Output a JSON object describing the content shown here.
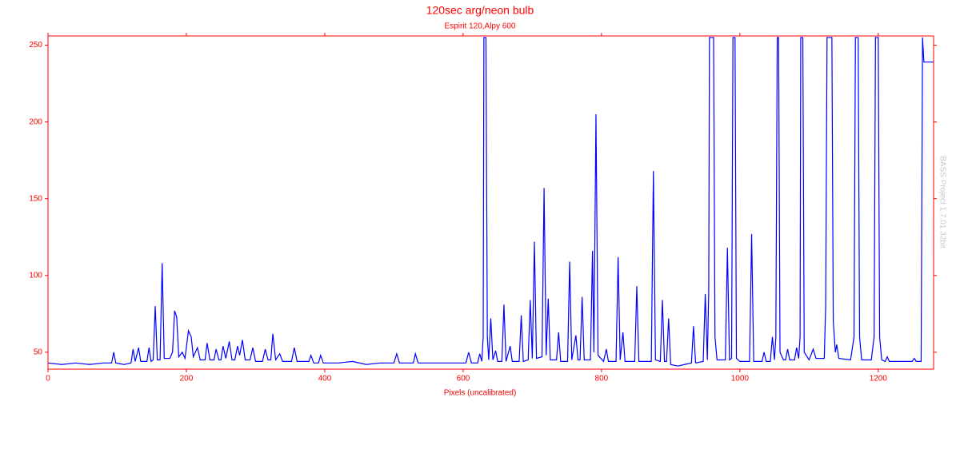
{
  "chart_data": {
    "type": "line",
    "title": "120sec arg/neon bulb",
    "subtitle": "Espirit 120,Alpy 600",
    "x_label": "Pixels (uncalibrated)",
    "watermark": "BASS Project 1.7.01 32bit",
    "axis_color": "#ff0000",
    "color": "#0000ff",
    "xlim": [
      0,
      1280
    ],
    "xticks": [
      0,
      200,
      400,
      600,
      800,
      1000,
      1200
    ],
    "ylim": [
      39,
      256
    ],
    "yticks": [
      50,
      100,
      150,
      200,
      250
    ],
    "grid": false,
    "x": [
      0,
      20,
      40,
      60,
      80,
      92,
      95,
      98,
      110,
      120,
      123,
      126,
      131,
      134,
      143,
      146,
      149,
      152,
      155,
      158,
      162,
      165,
      168,
      176,
      180,
      183,
      186,
      189,
      194,
      198,
      203,
      207,
      210,
      216,
      220,
      227,
      230,
      234,
      240,
      243,
      247,
      250,
      253,
      257,
      262,
      266,
      270,
      274,
      277,
      281,
      285,
      292,
      296,
      300,
      310,
      314,
      318,
      322,
      325,
      329,
      335,
      339,
      352,
      356,
      360,
      377,
      380,
      384,
      391,
      394,
      398,
      420,
      440,
      460,
      480,
      500,
      504,
      508,
      528,
      531,
      535,
      560,
      580,
      604,
      608,
      612,
      621,
      624,
      627,
      629,
      630,
      633,
      635,
      637,
      640,
      643,
      647,
      650,
      656,
      659,
      662,
      668,
      671,
      681,
      684,
      687,
      694,
      697,
      700,
      703,
      706,
      714,
      717,
      720,
      723,
      726,
      735,
      738,
      741,
      751,
      754,
      757,
      763,
      766,
      769,
      772,
      775,
      784,
      787,
      789,
      792,
      795,
      803,
      807,
      810,
      821,
      824,
      827,
      831,
      834,
      848,
      851,
      854,
      872,
      875,
      878,
      885,
      888,
      891,
      894,
      897,
      900,
      910,
      920,
      930,
      933,
      936,
      947,
      950,
      953,
      955,
      956,
      962,
      964,
      967,
      979,
      982,
      985,
      988,
      990,
      993,
      995,
      1000,
      1014,
      1017,
      1020,
      1032,
      1035,
      1038,
      1044,
      1047,
      1050,
      1052,
      1054,
      1056,
      1058,
      1063,
      1066,
      1069,
      1072,
      1079,
      1082,
      1085,
      1087,
      1088,
      1091,
      1093,
      1100,
      1106,
      1110,
      1122,
      1124,
      1126,
      1133,
      1135,
      1138,
      1140,
      1143,
      1160,
      1165,
      1167,
      1171,
      1173,
      1176,
      1190,
      1194,
      1196,
      1200,
      1202,
      1205,
      1210,
      1213,
      1216,
      1230,
      1249,
      1252,
      1255,
      1262,
      1264,
      1266,
      1280
    ],
    "values": [
      43,
      42,
      43,
      42,
      43,
      43,
      50,
      43,
      42,
      43,
      52,
      44,
      53,
      44,
      44,
      53,
      44,
      45,
      80,
      45,
      45,
      108,
      46,
      46,
      50,
      77,
      73,
      47,
      50,
      46,
      64,
      60,
      47,
      53,
      45,
      45,
      56,
      45,
      45,
      52,
      45,
      45,
      54,
      46,
      57,
      45,
      45,
      54,
      48,
      58,
      45,
      45,
      53,
      44,
      44,
      52,
      45,
      45,
      62,
      45,
      49,
      44,
      44,
      53,
      44,
      44,
      48,
      43,
      43,
      48,
      43,
      43,
      44,
      42,
      43,
      43,
      49,
      43,
      43,
      49,
      43,
      43,
      43,
      43,
      50,
      43,
      43,
      49,
      44,
      60,
      255,
      255,
      60,
      45,
      72,
      45,
      51,
      44,
      44,
      81,
      44,
      54,
      44,
      44,
      74,
      44,
      45,
      84,
      46,
      122,
      46,
      47,
      157,
      48,
      85,
      45,
      45,
      63,
      44,
      44,
      109,
      45,
      61,
      45,
      45,
      86,
      45,
      45,
      116,
      50,
      205,
      48,
      44,
      52,
      44,
      44,
      112,
      45,
      63,
      44,
      44,
      93,
      44,
      44,
      168,
      45,
      44,
      84,
      44,
      44,
      72,
      42,
      41,
      42,
      43,
      67,
      43,
      44,
      88,
      45,
      90,
      255,
      255,
      60,
      45,
      45,
      118,
      45,
      46,
      255,
      255,
      46,
      44,
      44,
      127,
      44,
      44,
      50,
      44,
      44,
      60,
      45,
      60,
      255,
      255,
      50,
      45,
      45,
      52,
      45,
      45,
      53,
      46,
      60,
      255,
      255,
      50,
      45,
      52,
      46,
      46,
      80,
      255,
      255,
      70,
      50,
      55,
      46,
      45,
      60,
      255,
      255,
      60,
      45,
      45,
      60,
      255,
      255,
      60,
      45,
      44,
      47,
      44,
      44,
      44,
      46,
      44,
      44,
      255,
      239,
      239
    ]
  }
}
